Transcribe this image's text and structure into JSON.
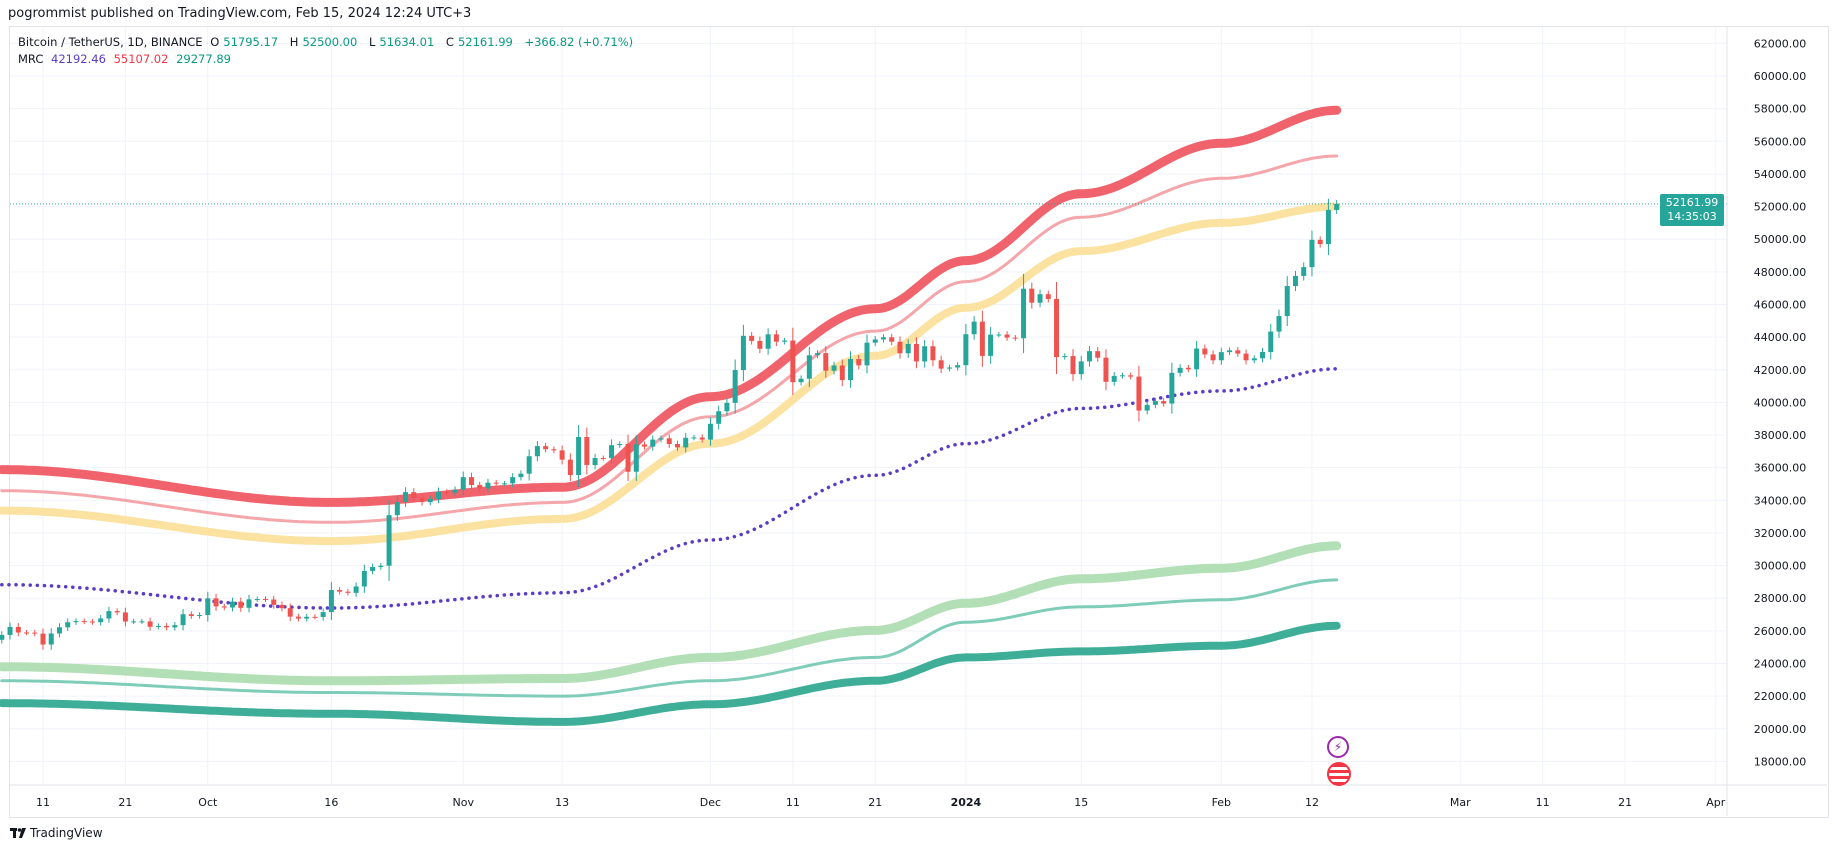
{
  "publish_line": "pogrommist published on TradingView.com, Feb 15, 2024 12:24 UTC+3",
  "legend": {
    "symbol": "Bitcoin / TetherUS, 1D, BINANCE",
    "open_prefix": "O",
    "open": "51795.17",
    "high_prefix": "H",
    "high": "52500.00",
    "low_prefix": "L",
    "low": "51634.01",
    "close_prefix": "C",
    "close": "52161.99",
    "change": "+366.82 (+0.71%)",
    "indicator": "MRC",
    "ind_values": [
      "42192.46",
      "55107.02",
      "29277.89"
    ]
  },
  "last_price": {
    "price": "52161.99",
    "countdown": "14:35:03",
    "value": 52161.99
  },
  "footer": {
    "brand": "TradingView"
  },
  "colors": {
    "up": "#26a69a",
    "down": "#ef5350",
    "mean": "#5b3cc4",
    "r2": "#f0636d",
    "r1": "#f4a6aa",
    "r_band": "#fbe2a0",
    "s_band": "#b2dfb5",
    "s1": "#7fcdb8",
    "s2": "#3fae98",
    "price_line": "#26a69a"
  },
  "chart_data": {
    "type": "candlestick",
    "start_date": "2023-09-06",
    "closes": [
      25750,
      26240,
      25900,
      25890,
      25830,
      25160,
      25840,
      26220,
      26530,
      26600,
      26570,
      26530,
      26760,
      27210,
      27130,
      26570,
      26580,
      26580,
      26250,
      26300,
      26210,
      26350,
      27020,
      26910,
      26970,
      27990,
      27500,
      27430,
      27790,
      27410,
      27930,
      27950,
      27920,
      27590,
      27390,
      26870,
      26750,
      26860,
      26850,
      27150,
      28500,
      28400,
      28330,
      28720,
      29670,
      29910,
      29990,
      33090,
      33900,
      34500,
      34150,
      33890,
      34080,
      34520,
      34480,
      34650,
      35420,
      34940,
      34730,
      35080,
      35040,
      35040,
      35420,
      35630,
      36700,
      37320,
      37130,
      37060,
      36490,
      35550,
      37880,
      36160,
      36590,
      36580,
      37380,
      37450,
      35750,
      37420,
      37290,
      37720,
      37800,
      37450,
      37240,
      37830,
      37850,
      37720,
      38690,
      39460,
      39970,
      41980,
      44080,
      43770,
      43290,
      44170,
      43720,
      43790,
      41240,
      41450,
      42890,
      43020,
      41940,
      42260,
      41370,
      42660,
      42270,
      43660,
      43860,
      43990,
      43720,
      43010,
      43580,
      42510,
      43440,
      42580,
      42070,
      42140,
      42280,
      44180,
      44950,
      42850,
      44150,
      44160,
      43970,
      43930,
      46970,
      46110,
      46630,
      46340,
      42780,
      42840,
      41730,
      42510,
      43140,
      42740,
      41260,
      41620,
      41660,
      41580,
      39500,
      39850,
      40080,
      39930,
      41810,
      42120,
      42030,
      43300,
      42940,
      42580,
      43080,
      43190,
      42990,
      42580,
      42700,
      43090,
      44340,
      45290,
      47130,
      47750,
      48290,
      49960,
      49700,
      51800,
      52161.99
    ],
    "indicator_dates": [
      "2023-09-06",
      "2023-10-16",
      "2023-11-13",
      "2023-12-01",
      "2023-12-21",
      "2024-01-01",
      "2024-01-15",
      "2024-02-01",
      "2024-02-15"
    ],
    "indicator_lines": {
      "upper_outer": [
        35880,
        33870,
        34800,
        40350,
        45740,
        48690,
        52790,
        55880,
        57900
      ],
      "upper_inner": [
        34590,
        32650,
        33870,
        39120,
        44370,
        47400,
        51350,
        53730,
        55100
      ],
      "upper_band": [
        33370,
        31500,
        32860,
        37470,
        42860,
        45800,
        49270,
        51000,
        52000
      ],
      "mean": [
        28830,
        27400,
        28330,
        31570,
        35530,
        37470,
        39630,
        40700,
        42060
      ],
      "lower_band": [
        23800,
        22940,
        23080,
        24370,
        26030,
        27690,
        29190,
        29840,
        31210
      ],
      "lower_inner": [
        22940,
        22220,
        22000,
        22940,
        24370,
        26530,
        27470,
        27900,
        29120
      ],
      "lower_outer": [
        21570,
        20920,
        20420,
        21500,
        22940,
        24370,
        24740,
        25090,
        26310
      ]
    },
    "y_ticks": [
      "62000.00",
      "60000.00",
      "58000.00",
      "56000.00",
      "54000.00",
      "52000.00",
      "50000.00",
      "48000.00",
      "46000.00",
      "44000.00",
      "42000.00",
      "40000.00",
      "38000.00",
      "36000.00",
      "34000.00",
      "32000.00",
      "30000.00",
      "28000.00",
      "26000.00",
      "24000.00",
      "22000.00",
      "20000.00",
      "18000.00"
    ],
    "x_ticks": [
      {
        "label": "11",
        "date": "2023-09-11"
      },
      {
        "label": "21",
        "date": "2023-09-21"
      },
      {
        "label": "Oct",
        "date": "2023-10-01"
      },
      {
        "label": "16",
        "date": "2023-10-16"
      },
      {
        "label": "Nov",
        "date": "2023-11-01"
      },
      {
        "label": "13",
        "date": "2023-11-13"
      },
      {
        "label": "Dec",
        "date": "2023-12-01"
      },
      {
        "label": "11",
        "date": "2023-12-11"
      },
      {
        "label": "21",
        "date": "2023-12-21"
      },
      {
        "label": "2024",
        "date": "2024-01-01"
      },
      {
        "label": "15",
        "date": "2024-01-15"
      },
      {
        "label": "Feb",
        "date": "2024-02-01"
      },
      {
        "label": "12",
        "date": "2024-02-12"
      },
      {
        "label": "Mar",
        "date": "2024-03-01"
      },
      {
        "label": "11",
        "date": "2024-03-11"
      },
      {
        "label": "21",
        "date": "2024-03-21"
      },
      {
        "label": "Apr",
        "date": "2024-04-01"
      }
    ],
    "grid": true,
    "events": [
      {
        "icon": "lightning-icon"
      },
      {
        "icon": "us-flag-icon"
      }
    ]
  }
}
